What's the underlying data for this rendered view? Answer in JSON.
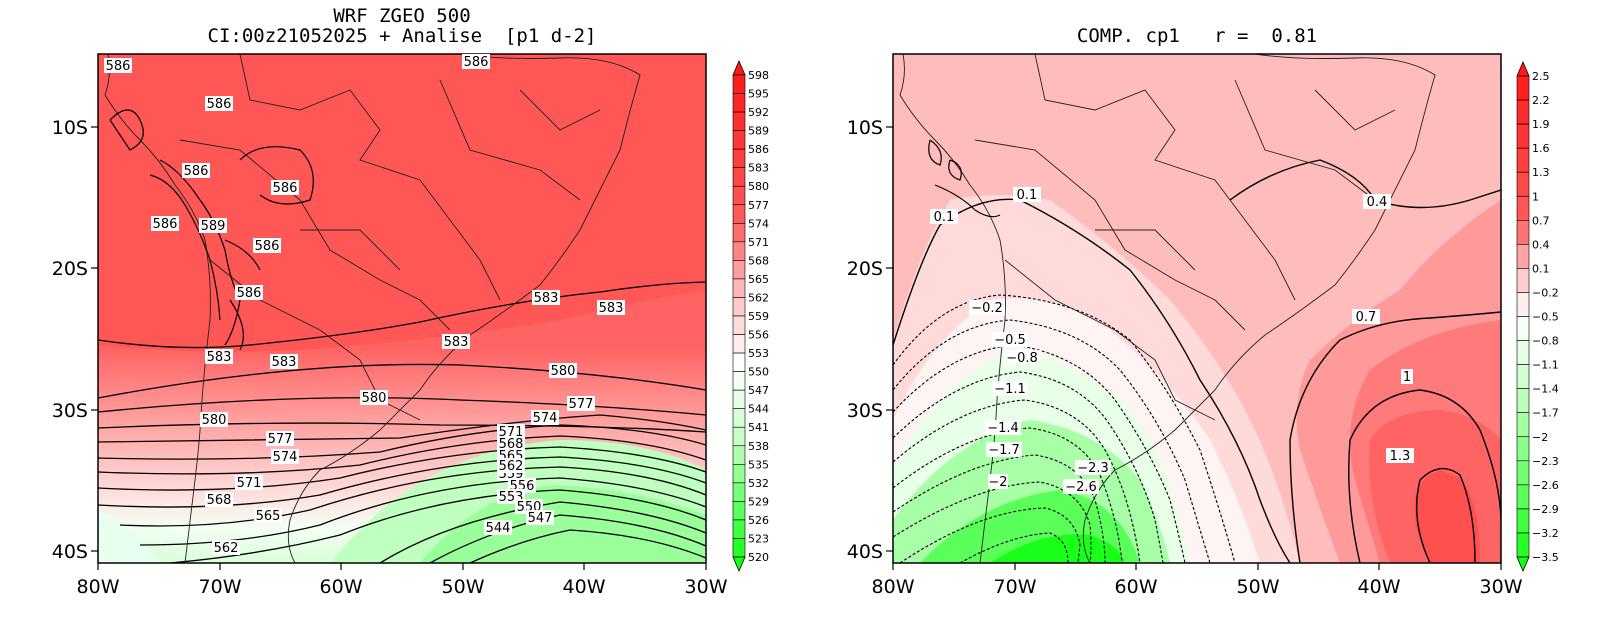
{
  "left_panel": {
    "title_line1": "WRF ZGEO 500",
    "title_line2": "CI:00z21052025 + Analise  [p1 d-2]",
    "lon_ticks": [
      "80W",
      "70W",
      "60W",
      "50W",
      "40W",
      "30W"
    ],
    "lat_ticks": [
      "10S",
      "20S",
      "30S",
      "40S"
    ],
    "colorbar_labels": [
      "598",
      "595",
      "592",
      "589",
      "586",
      "583",
      "580",
      "577",
      "574",
      "571",
      "568",
      "565",
      "562",
      "559",
      "556",
      "553",
      "550",
      "547",
      "544",
      "541",
      "538",
      "535",
      "532",
      "529",
      "526",
      "523",
      "520"
    ],
    "contour_labels": [
      {
        "id": "l1",
        "text": "586"
      },
      {
        "id": "l2",
        "text": "586"
      },
      {
        "id": "l3",
        "text": "586"
      },
      {
        "id": "l4",
        "text": "586"
      },
      {
        "id": "l5",
        "text": "586"
      },
      {
        "id": "l6",
        "text": "586"
      },
      {
        "id": "l7",
        "text": "589"
      },
      {
        "id": "l8",
        "text": "586"
      },
      {
        "id": "l9",
        "text": "586"
      },
      {
        "id": "l10",
        "text": "583"
      },
      {
        "id": "l11",
        "text": "583"
      },
      {
        "id": "l12",
        "text": "583"
      },
      {
        "id": "l13",
        "text": "583"
      },
      {
        "id": "l14",
        "text": "583"
      },
      {
        "id": "l15",
        "text": "580"
      },
      {
        "id": "l16",
        "text": "580"
      },
      {
        "id": "l17",
        "text": "580"
      },
      {
        "id": "l18",
        "text": "577"
      },
      {
        "id": "l19",
        "text": "577"
      },
      {
        "id": "l20",
        "text": "574"
      },
      {
        "id": "l21",
        "text": "574"
      },
      {
        "id": "l22",
        "text": "571"
      },
      {
        "id": "l23",
        "text": "571"
      },
      {
        "id": "l24",
        "text": "568"
      },
      {
        "id": "l25",
        "text": "568"
      },
      {
        "id": "l26",
        "text": "565"
      },
      {
        "id": "l27",
        "text": "565"
      },
      {
        "id": "l28",
        "text": "562"
      },
      {
        "id": "l29",
        "text": "559"
      },
      {
        "id": "l30",
        "text": "556"
      },
      {
        "id": "l31",
        "text": "553"
      },
      {
        "id": "l32",
        "text": "550"
      },
      {
        "id": "l33",
        "text": "547"
      },
      {
        "id": "l34",
        "text": "544"
      },
      {
        "id": "l35",
        "text": "562"
      }
    ]
  },
  "right_panel": {
    "title": "COMP. cp1   r =  0.81",
    "lon_ticks": [
      "80W",
      "70W",
      "60W",
      "50W",
      "40W",
      "30W"
    ],
    "lat_ticks": [
      "10S",
      "20S",
      "30S",
      "40S"
    ],
    "colorbar_labels": [
      "2.5",
      "2.2",
      "1.9",
      "1.6",
      "1.3",
      "1",
      "0.7",
      "0.4",
      "0.1",
      "−0.2",
      "−0.5",
      "−0.8",
      "−1.1",
      "−1.4",
      "−1.7",
      "−2",
      "−2.3",
      "−2.6",
      "−2.9",
      "−3.2",
      "−3.5"
    ],
    "contour_labels": [
      {
        "id": "r1",
        "text": "0.1"
      },
      {
        "id": "r2",
        "text": "0.1"
      },
      {
        "id": "r3",
        "text": "0.4"
      },
      {
        "id": "r4",
        "text": "−0.2"
      },
      {
        "id": "r5",
        "text": "−0.5"
      },
      {
        "id": "r6",
        "text": "−0.8"
      },
      {
        "id": "r7",
        "text": "0.7"
      },
      {
        "id": "r8",
        "text": "1"
      },
      {
        "id": "r9",
        "text": "−1.1"
      },
      {
        "id": "r10",
        "text": "−1.4"
      },
      {
        "id": "r11",
        "text": "−1.7"
      },
      {
        "id": "r12",
        "text": "−2"
      },
      {
        "id": "r13",
        "text": "−2.3"
      },
      {
        "id": "r14",
        "text": "−2.6"
      },
      {
        "id": "r15",
        "text": "1.3"
      }
    ]
  },
  "colors": {
    "max_red": "#ff1a1a",
    "mid_red": "#ff5a5a",
    "pink": "#ffbcbc",
    "white": "#ffffff",
    "light_green": "#c8ffc8",
    "max_green": "#1aff1a"
  }
}
